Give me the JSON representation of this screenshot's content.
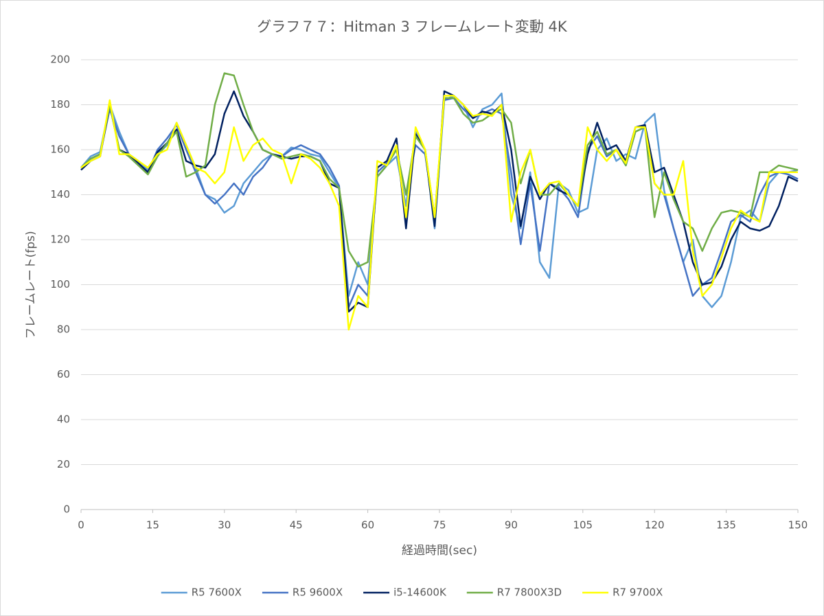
{
  "chart_data": {
    "type": "line",
    "title": "グラフ７７：Hitman 3 フレームレート変動 4K",
    "x_label": "経過時間(sec)",
    "y_label": "フレームレート(fps)",
    "x": [
      0,
      2,
      4,
      6,
      8,
      10,
      12,
      14,
      16,
      18,
      20,
      22,
      24,
      26,
      28,
      30,
      32,
      34,
      36,
      38,
      40,
      42,
      44,
      46,
      48,
      50,
      52,
      54,
      56,
      58,
      60,
      62,
      64,
      66,
      68,
      70,
      72,
      74,
      76,
      78,
      80,
      82,
      84,
      86,
      88,
      90,
      92,
      94,
      96,
      98,
      100,
      102,
      104,
      106,
      108,
      110,
      112,
      114,
      116,
      118,
      120,
      122,
      124,
      126,
      128,
      130,
      132,
      134,
      136,
      138,
      140,
      142,
      144,
      146,
      148,
      150
    ],
    "xlim": [
      0,
      150
    ],
    "xticks": [
      0,
      15,
      30,
      45,
      60,
      75,
      90,
      105,
      120,
      135,
      150
    ],
    "ylim": [
      0,
      200
    ],
    "yticks": [
      0,
      20,
      40,
      60,
      80,
      100,
      120,
      140,
      160,
      180,
      200
    ],
    "grid": true,
    "legend": "bottom",
    "series": [
      {
        "name": "R5 7600X",
        "color": "#5b9bd5",
        "values": [
          152,
          157,
          159,
          180,
          168,
          158,
          155,
          151,
          158,
          162,
          172,
          162,
          152,
          140,
          138,
          132,
          135,
          145,
          150,
          155,
          158,
          157,
          161,
          160,
          158,
          157,
          150,
          143,
          95,
          110,
          100,
          148,
          153,
          157,
          135,
          168,
          160,
          125,
          182,
          184,
          180,
          170,
          178,
          180,
          185,
          140,
          125,
          150,
          110,
          103,
          145,
          142,
          132,
          134,
          160,
          165,
          155,
          158,
          156,
          172,
          176,
          142,
          125,
          110,
          120,
          95,
          90,
          95,
          110,
          130,
          133,
          128,
          145,
          150,
          150,
          151
        ]
      },
      {
        "name": "R5 9600X",
        "color": "#4472c4",
        "values": [
          152,
          156,
          158,
          178,
          166,
          158,
          154,
          150,
          160,
          165,
          171,
          160,
          150,
          140,
          136,
          140,
          145,
          140,
          148,
          152,
          158,
          157,
          160,
          162,
          160,
          158,
          152,
          144,
          90,
          100,
          95,
          150,
          154,
          160,
          140,
          162,
          158,
          130,
          182,
          183,
          178,
          174,
          176,
          178,
          176,
          150,
          118,
          145,
          115,
          145,
          143,
          138,
          130,
          160,
          166,
          157,
          160,
          153,
          168,
          170,
          145,
          140,
          125,
          110,
          95,
          100,
          103,
          115,
          128,
          131,
          128,
          140,
          148,
          150,
          149,
          147
        ]
      },
      {
        "name": "i5-14600K",
        "color": "#002060",
        "values": [
          151,
          155,
          157,
          180,
          160,
          158,
          154,
          150,
          159,
          163,
          169,
          155,
          153,
          152,
          158,
          176,
          186,
          175,
          168,
          160,
          158,
          157,
          156,
          157,
          157,
          155,
          145,
          143,
          88,
          92,
          90,
          152,
          155,
          165,
          125,
          167,
          160,
          126,
          186,
          184,
          180,
          174,
          177,
          176,
          180,
          160,
          126,
          148,
          138,
          145,
          142,
          140,
          135,
          158,
          172,
          160,
          162,
          155,
          170,
          171,
          150,
          152,
          140,
          128,
          110,
          100,
          101,
          108,
          120,
          128,
          125,
          124,
          126,
          135,
          148,
          146
        ]
      },
      {
        "name": "R7 7800X3D",
        "color": "#70ad47",
        "values": [
          152,
          156,
          158,
          180,
          160,
          157,
          153,
          149,
          157,
          163,
          168,
          148,
          150,
          153,
          180,
          194,
          193,
          180,
          168,
          160,
          158,
          156,
          157,
          158,
          157,
          155,
          147,
          143,
          115,
          108,
          110,
          148,
          153,
          160,
          140,
          166,
          160,
          130,
          183,
          183,
          176,
          172,
          173,
          176,
          178,
          172,
          145,
          160,
          140,
          140,
          145,
          140,
          135,
          162,
          168,
          158,
          160,
          153,
          168,
          170,
          130,
          150,
          138,
          128,
          125,
          115,
          125,
          132,
          133,
          132,
          130,
          150,
          150,
          153,
          152,
          151
        ]
      },
      {
        "name": "R7 9700X",
        "color": "#ffff00",
        "values": [
          152,
          155,
          157,
          182,
          158,
          158,
          155,
          152,
          158,
          160,
          172,
          162,
          152,
          150,
          145,
          150,
          170,
          155,
          162,
          165,
          160,
          158,
          145,
          158,
          156,
          152,
          145,
          135,
          80,
          95,
          90,
          155,
          153,
          162,
          130,
          170,
          160,
          130,
          184,
          184,
          180,
          175,
          176,
          175,
          180,
          128,
          150,
          160,
          140,
          145,
          146,
          140,
          135,
          170,
          160,
          155,
          160,
          154,
          170,
          170,
          145,
          140,
          140,
          155,
          115,
          95,
          100,
          112,
          125,
          133,
          130,
          128,
          150,
          150,
          150,
          150
        ]
      }
    ]
  }
}
